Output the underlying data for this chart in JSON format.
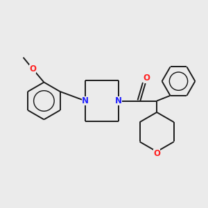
{
  "background_color": "#ebebeb",
  "bond_color": "#1a1a1a",
  "nitrogen_color": "#2020ff",
  "oxygen_color": "#ff2020",
  "line_width": 1.4,
  "font_size": 8.5,
  "fig_width": 3.0,
  "fig_height": 3.0,
  "dpi": 100,
  "xlim": [
    0,
    10
  ],
  "ylim": [
    0,
    10
  ]
}
